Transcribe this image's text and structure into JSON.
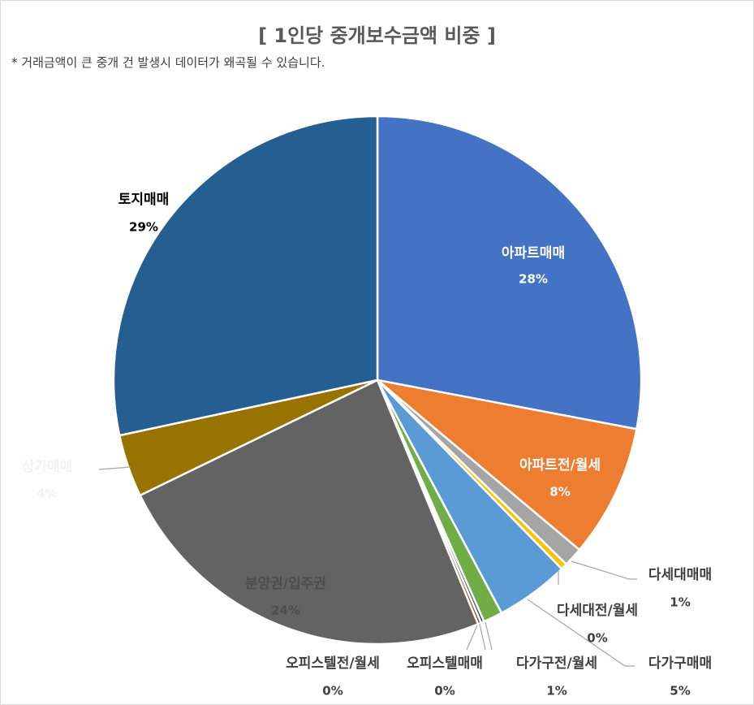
{
  "chart_data": {
    "type": "pie",
    "title": "[ 1인당 중개보수금액 비중 ]",
    "note": "* 거래금액이 큰 중개 건 발생시 데이터가 왜곡될 수 있습니다.",
    "slices": [
      {
        "label": "아파트매매",
        "percent_label": "28%",
        "value": 28.5,
        "color": "#4472c4",
        "text_color": "#ffffff"
      },
      {
        "label": "아파트전/월세",
        "percent_label": "8%",
        "value": 8.3,
        "color": "#ed7d31",
        "text_color": "#ffffff"
      },
      {
        "label": "다세대매매",
        "percent_label": "1%",
        "value": 1.2,
        "color": "#a5a5a5",
        "text_color": "#404040"
      },
      {
        "label": "다세대전/월세",
        "percent_label": "0%",
        "value": 0.4,
        "color": "#ffc000",
        "text_color": "#404040"
      },
      {
        "label": "다가구매매",
        "percent_label": "5%",
        "value": 4.6,
        "color": "#5b9bd5",
        "text_color": "#404040"
      },
      {
        "label": "다가구전/월세",
        "percent_label": "1%",
        "value": 1.2,
        "color": "#70ad47",
        "text_color": "#404040"
      },
      {
        "label": "오피스텔매매",
        "percent_label": "0%",
        "value": 0.2,
        "color": "#264478",
        "text_color": "#404040"
      },
      {
        "label": "오피스텔전/월세",
        "percent_label": "0%",
        "value": 0.2,
        "color": "#9e480e",
        "text_color": "#404040"
      },
      {
        "label": "분양권/입주권",
        "percent_label": "24%",
        "value": 24.5,
        "color": "#636363",
        "text_color": "#4d4d4d"
      },
      {
        "label": "상가매매",
        "percent_label": "4%",
        "value": 3.9,
        "color": "#997300",
        "text_color": "#f2f2f2"
      },
      {
        "label": "토지매매",
        "percent_label": "29%",
        "value": 28.9,
        "color": "#255e91",
        "text_color": "#000000"
      }
    ],
    "start_angle_deg": 0,
    "direction": "clockwise",
    "legend": "none"
  }
}
